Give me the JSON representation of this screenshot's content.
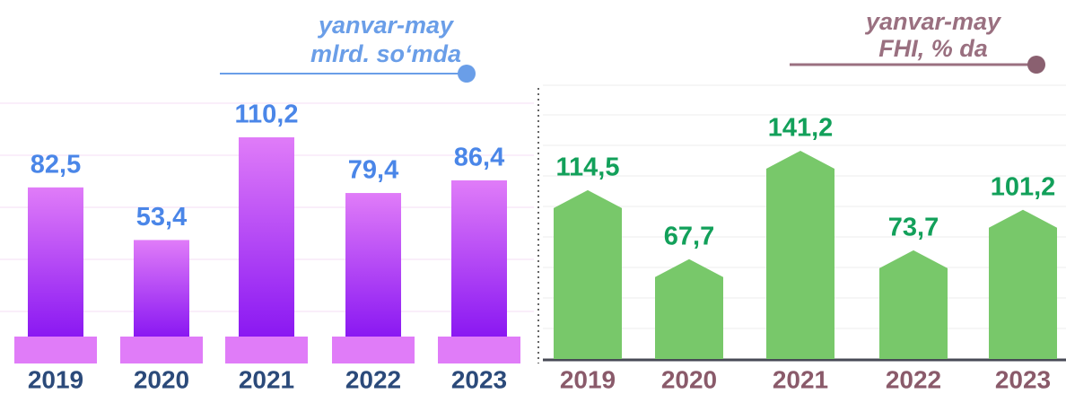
{
  "chart_data": [
    {
      "type": "bar",
      "subtitle": [
        "yanvar-may",
        "mlrd. so‘mda"
      ],
      "categories": [
        "2019",
        "2020",
        "2021",
        "2022",
        "2023"
      ],
      "values": [
        82.5,
        53.4,
        110.2,
        79.4,
        86.4
      ],
      "value_labels": [
        "82,5",
        "53,4",
        "110,2",
        "79,4",
        "86,4"
      ],
      "color": "#e07cf8"
    },
    {
      "type": "arrowbar",
      "subtitle": [
        "yanvar-may",
        "FHI, % da"
      ],
      "categories": [
        "2019",
        "2020",
        "2021",
        "2022",
        "2023"
      ],
      "values": [
        114.5,
        67.7,
        141.2,
        73.7,
        101.2
      ],
      "value_labels": [
        "114,5",
        "67,7",
        "141,2",
        "73,7",
        "101,2"
      ],
      "color": "#78c86a"
    }
  ]
}
